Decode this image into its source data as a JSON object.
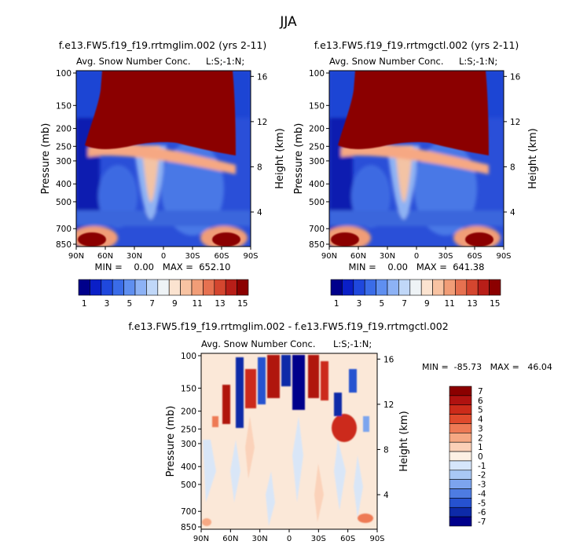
{
  "main_title": "JJA",
  "chart_data": [
    {
      "type": "heatmap",
      "case_title": "f.e13.FW5.f19_f19.rrtmglim.002 (yrs 2-11)",
      "variable_label": "Avg. Snow Number Conc.",
      "level_label": "L:S;-1:N;",
      "ylabel": "Pressure (mb)",
      "ylabel_right": "Height (km)",
      "x_ticks": [
        "90N",
        "60N",
        "30N",
        "0",
        "30S",
        "60S",
        "90S"
      ],
      "y_ticks": [
        "100",
        "150",
        "200",
        "250",
        "300",
        "400",
        "500",
        "700",
        "850"
      ],
      "y_ticks_right": [
        "16",
        "12",
        "8",
        "4"
      ],
      "stats": "MIN =    0.00   MAX =  652.10",
      "min": 0.0,
      "max": 652.1,
      "colorbar_labels": [
        "1",
        "3",
        "5",
        "7",
        "9",
        "11",
        "13",
        "15"
      ]
    },
    {
      "type": "heatmap",
      "case_title": "f.e13.FW5.f19_f19.rrtmgctl.002 (yrs 2-11)",
      "variable_label": "Avg. Snow Number Conc.",
      "level_label": "L:S;-1:N;",
      "ylabel": "Pressure (mb)",
      "ylabel_right": "Height (km)",
      "x_ticks": [
        "90N",
        "60N",
        "30N",
        "0",
        "30S",
        "60S",
        "90S"
      ],
      "y_ticks": [
        "100",
        "150",
        "200",
        "250",
        "300",
        "400",
        "500",
        "700",
        "850"
      ],
      "y_ticks_right": [
        "16",
        "12",
        "8",
        "4"
      ],
      "stats": "MIN =    0.00   MAX =  641.38",
      "min": 0.0,
      "max": 641.38,
      "colorbar_labels": [
        "1",
        "3",
        "5",
        "7",
        "9",
        "11",
        "13",
        "15"
      ]
    },
    {
      "type": "heatmap",
      "case_title": "f.e13.FW5.f19_f19.rrtmglim.002 - f.e13.FW5.f19_f19.rrtmgctl.002",
      "variable_label": "Avg. Snow Number Conc.",
      "level_label": "L:S;-1:N;",
      "ylabel": "Pressure (mb)",
      "ylabel_right": "Height (km)",
      "x_ticks": [
        "90N",
        "60N",
        "30N",
        "0",
        "30S",
        "60S",
        "90S"
      ],
      "y_ticks": [
        "100",
        "150",
        "200",
        "250",
        "300",
        "400",
        "500",
        "700",
        "850"
      ],
      "y_ticks_right": [
        "16",
        "12",
        "8",
        "4"
      ],
      "stats": "MIN =  -85.73   MAX =   46.04",
      "min": -85.73,
      "max": 46.04,
      "colorbar_labels": [
        "7",
        "6",
        "5",
        "4",
        "3",
        "2",
        "1",
        "0",
        "-1",
        "-2",
        "-3",
        "-4",
        "-5",
        "-6",
        "-7"
      ]
    }
  ],
  "colors": {
    "seq_scale": [
      "#00008b",
      "#0a1fc7",
      "#1f48dd",
      "#3a6ce8",
      "#5f8ff0",
      "#8db2f5",
      "#c0d7f8",
      "#eef3f6",
      "#fbe3d0",
      "#f8c3a2",
      "#f19d77",
      "#e67150",
      "#d4462f",
      "#b81e18",
      "#8b0000"
    ],
    "div_scale": [
      "#8b0000",
      "#b01210",
      "#cc2b1a",
      "#e04a2c",
      "#ee7a55",
      "#f6a883",
      "#fbd0b7",
      "#fdf0e4",
      "#d6e6fb",
      "#a9c8f5",
      "#7ca4ee",
      "#4e7ce2",
      "#2652d0",
      "#0d2aa8",
      "#00008b"
    ]
  }
}
